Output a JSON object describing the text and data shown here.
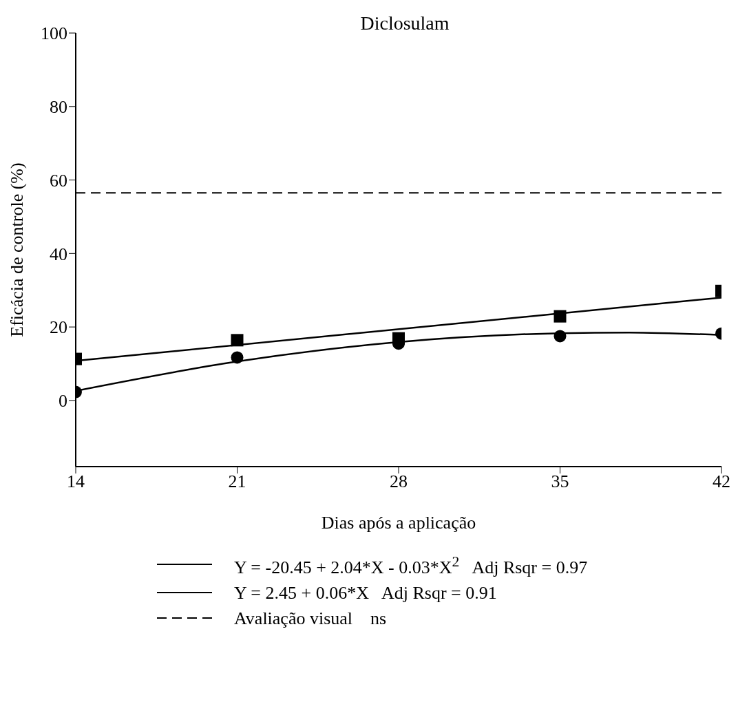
{
  "chart_data": {
    "type": "scatter",
    "title": "Diclosulam",
    "xlabel": "Dias após a aplicação",
    "ylabel": "Eficácia de controle (%)",
    "x": [
      14,
      21,
      28,
      35,
      42
    ],
    "series": [
      {
        "color": "#000000",
        "marker": "circle",
        "values": [
          2.3,
          11.7,
          15.5,
          17.5,
          18.2
        ]
      },
      {
        "type": "line",
        "name": "Y = -20.45 + 2.04*X - 0.03*X$^{2}$   Adj Rsqr = 0.97",
        "color": "#000000",
        "marker": "none",
        "line_style": "solid",
        "x": [
          14,
          21,
          28,
          35,
          38,
          42
        ],
        "values": [
          2.6,
          10.6,
          15.9,
          18.3,
          18.5,
          17.8
        ]
      },
      {
        "color": "#000000",
        "marker": "square",
        "values": [
          11.3,
          16.4,
          16.9,
          22.9,
          29.8
        ]
      },
      {
        "type": "line",
        "name": "Y = 2.45 + 0.06*X   Adj Rsqr = 0.91",
        "color": "#000000",
        "marker": "none",
        "line_style": "solid",
        "x": [
          14,
          42
        ],
        "values": [
          10.8,
          28.0
        ]
      }
    ],
    "ref_lines": [
      {
        "axis": "y",
        "value": 56.5,
        "label": "Avaliação visual    ns",
        "color": "#000000",
        "line_style": "dashed"
      }
    ],
    "xlim": [
      14,
      42
    ],
    "xticks": [
      14,
      21,
      28,
      35,
      42
    ],
    "ylim": [
      -18,
      100
    ],
    "yticks": [
      0,
      20,
      40,
      60,
      80,
      100
    ],
    "grid": false,
    "legend": "bottom"
  }
}
